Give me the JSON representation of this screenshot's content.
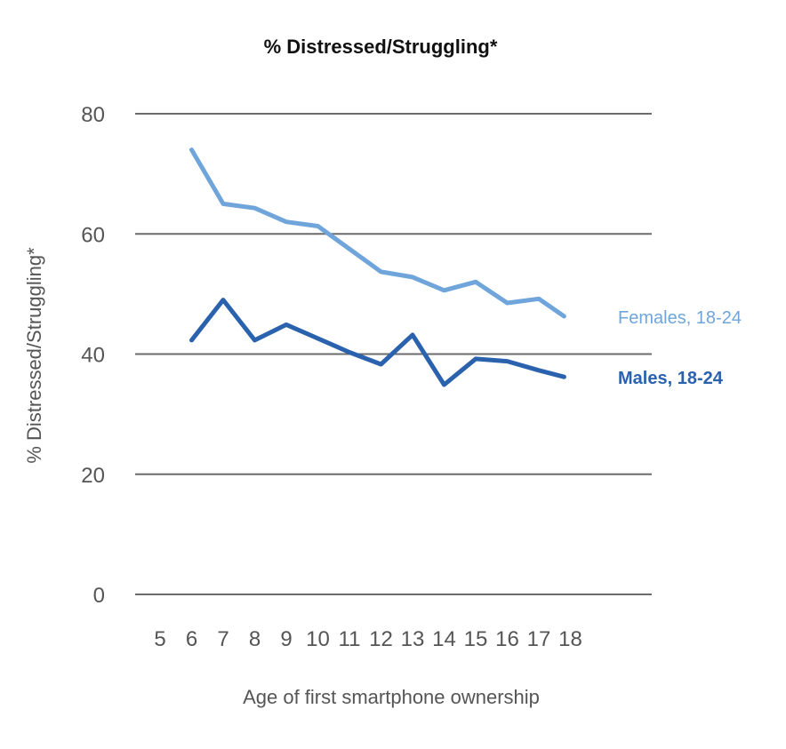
{
  "chart_data": {
    "type": "line",
    "title": "% Distressed/Struggling*",
    "xlabel": "Age of first smartphone ownership",
    "ylabel": "% Distressed/Struggling*",
    "ylim": [
      0,
      80
    ],
    "yticks": [
      0,
      20,
      40,
      60,
      80
    ],
    "xticks": [
      "5",
      "6",
      "7",
      "8",
      "9",
      "10",
      "11",
      "12",
      "13",
      "14",
      "15",
      "16",
      "17",
      "18"
    ],
    "xlim": [
      5,
      18
    ],
    "grid": true,
    "series": [
      {
        "name": "Females, 18-24",
        "color": "#6fa5da",
        "x": [
          6,
          7,
          8,
          9,
          10,
          11,
          12,
          13,
          14,
          15,
          16,
          17
        ],
        "values": [
          74,
          65,
          64.3,
          62,
          61.3,
          57.5,
          53.7,
          52.8,
          50.6,
          52,
          48.5,
          49.2
        ],
        "last_point": {
          "x": 17.8,
          "y": 46.3
        }
      },
      {
        "name": "Males, 18-24",
        "color": "#2b62ad",
        "x": [
          6,
          7,
          8,
          9,
          10,
          11,
          12,
          13,
          14,
          15,
          16,
          17
        ],
        "values": [
          42.3,
          49,
          42.3,
          44.9,
          42.6,
          40.3,
          38.3,
          43.2,
          34.9,
          39.2,
          38.8,
          37.3
        ],
        "last_point": {
          "x": 17.8,
          "y": 36.2
        }
      }
    ]
  }
}
